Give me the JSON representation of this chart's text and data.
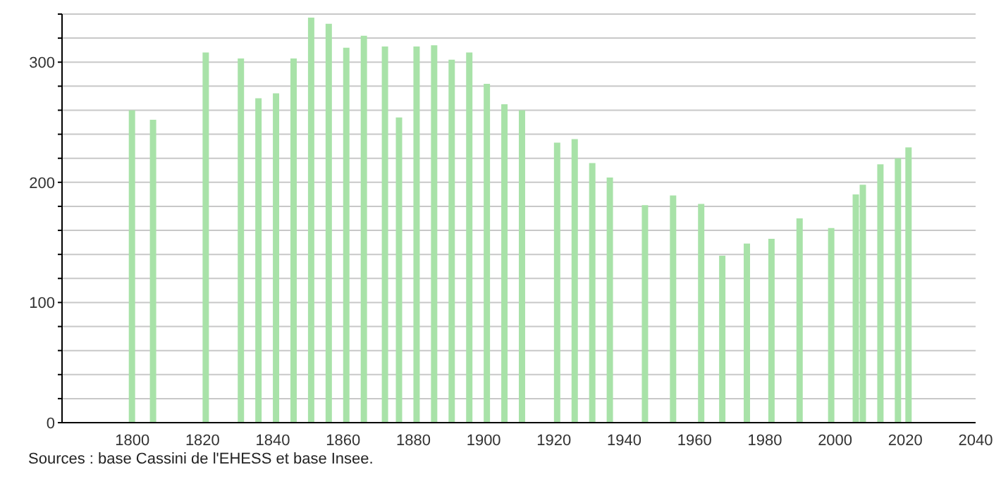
{
  "chart_data": {
    "type": "bar",
    "x": [
      1800,
      1806,
      1821,
      1831,
      1836,
      1841,
      1846,
      1851,
      1856,
      1861,
      1866,
      1872,
      1876,
      1881,
      1886,
      1891,
      1896,
      1901,
      1906,
      1911,
      1921,
      1926,
      1931,
      1936,
      1946,
      1954,
      1962,
      1968,
      1975,
      1982,
      1990,
      1999,
      2006,
      2008,
      2013,
      2018,
      2021
    ],
    "values": [
      260,
      252,
      308,
      303,
      270,
      274,
      303,
      337,
      332,
      312,
      322,
      313,
      254,
      313,
      314,
      302,
      308,
      282,
      265,
      260,
      233,
      236,
      216,
      204,
      181,
      189,
      182,
      139,
      149,
      153,
      170,
      162,
      190,
      198,
      215,
      220,
      229
    ],
    "color": "#a8e2a8",
    "xlim": [
      1780,
      2040
    ],
    "xticks": [
      1800,
      1820,
      1840,
      1860,
      1880,
      1900,
      1920,
      1940,
      1960,
      1980,
      2000,
      2020,
      2040
    ],
    "ylim": [
      0,
      340
    ],
    "yticks": [
      0,
      {
        "value": 20,
        "label": null
      },
      {
        "value": 40,
        "label": null
      },
      {
        "value": 60,
        "label": null
      },
      {
        "value": 80,
        "label": null
      },
      100,
      {
        "value": 120,
        "label": null
      },
      {
        "value": 140,
        "label": null
      },
      {
        "value": 160,
        "label": null
      },
      {
        "value": 180,
        "label": null
      },
      200,
      {
        "value": 220,
        "label": null
      },
      {
        "value": 240,
        "label": null
      },
      {
        "value": 260,
        "label": null
      },
      {
        "value": 280,
        "label": null
      },
      300,
      {
        "value": 320,
        "label": null
      },
      {
        "value": 340,
        "label": null
      }
    ],
    "grid": "y",
    "annotations": [
      "Sources : base Cassini de l'EHESS et base Insee."
    ]
  }
}
